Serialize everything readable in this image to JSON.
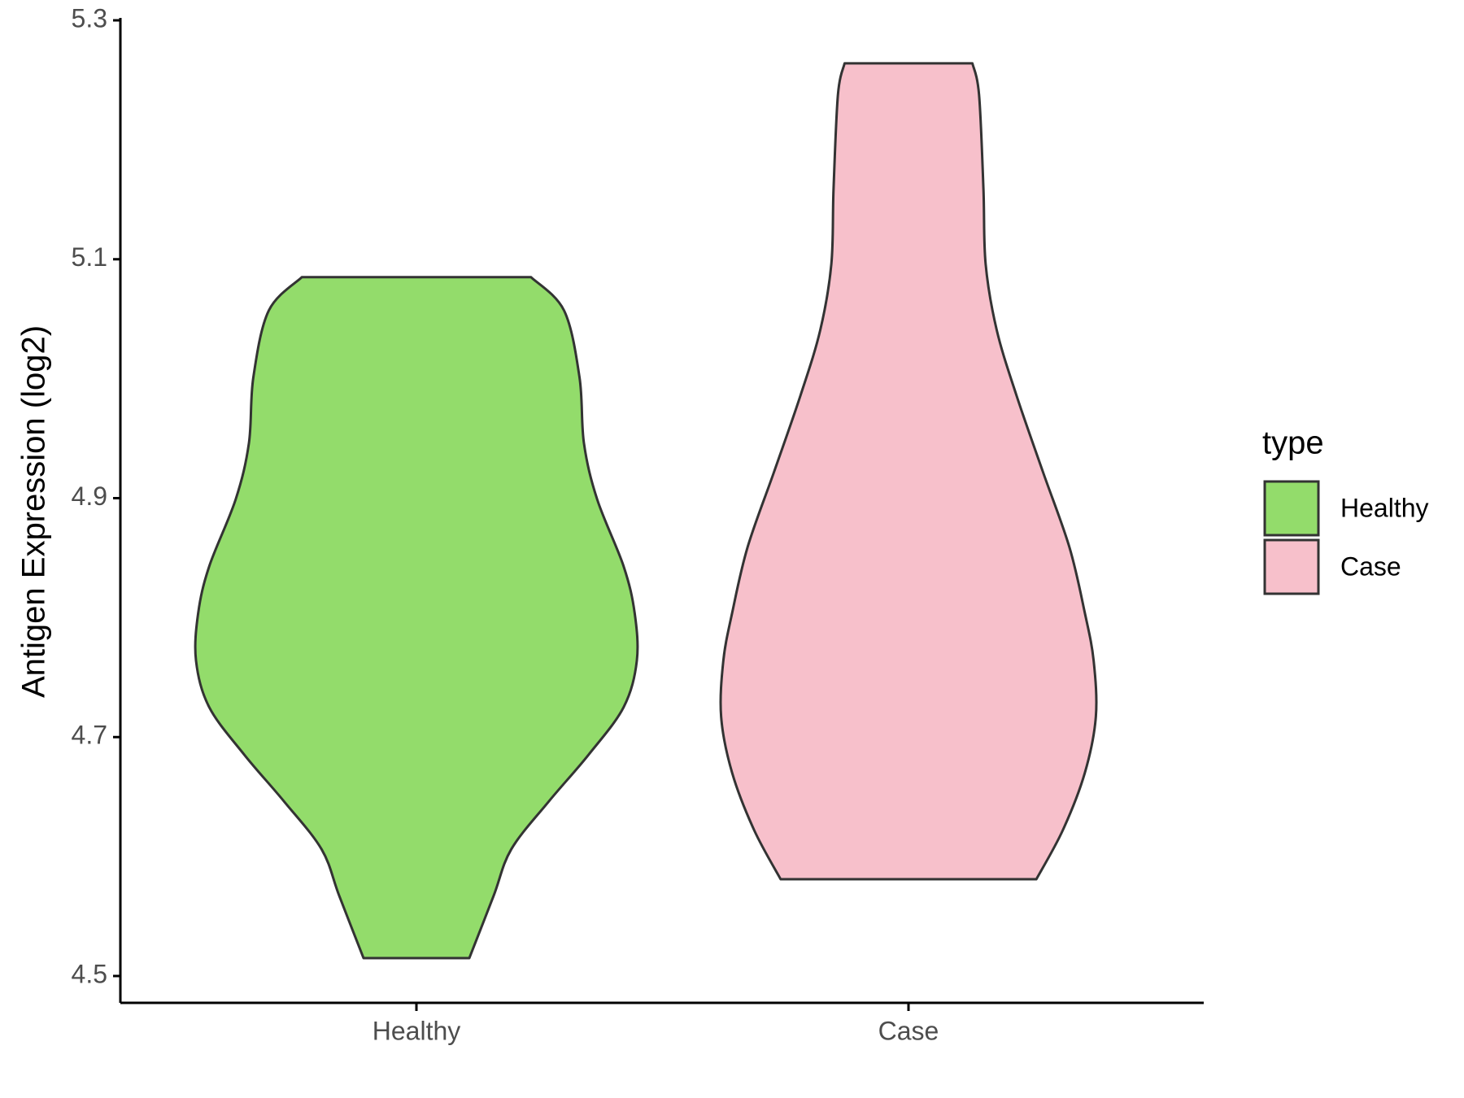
{
  "chart_data": {
    "type": "violin",
    "y_label": "Antigen Expression (log2)",
    "categories": [
      "Healthy",
      "Case"
    ],
    "ylim": [
      4.5,
      5.3
    ],
    "yticks": [
      4.5,
      4.7,
      4.9,
      5.1,
      5.3
    ],
    "legend_title": "type",
    "legend_position": "right",
    "series": [
      {
        "name": "Healthy",
        "color": "#93dc6b",
        "values": [
          5.085,
          5.057,
          5.001,
          4.946,
          4.899,
          4.843,
          4.804,
          4.764,
          4.725,
          4.685,
          4.646,
          4.606,
          4.567,
          4.515
        ],
        "widths": [
          0.52,
          0.67,
          0.74,
          0.76,
          0.82,
          0.94,
          0.99,
          1.0,
          0.94,
          0.78,
          0.6,
          0.43,
          0.35,
          0.24
        ]
      },
      {
        "name": "Case",
        "color": "#f7c0cb",
        "values": [
          5.264,
          5.238,
          5.159,
          5.096,
          5.041,
          4.986,
          4.922,
          4.859,
          4.804,
          4.764,
          4.717,
          4.67,
          4.622,
          4.581
        ],
        "widths": [
          0.29,
          0.32,
          0.34,
          0.35,
          0.4,
          0.49,
          0.61,
          0.73,
          0.8,
          0.84,
          0.85,
          0.8,
          0.7,
          0.58
        ]
      }
    ]
  }
}
